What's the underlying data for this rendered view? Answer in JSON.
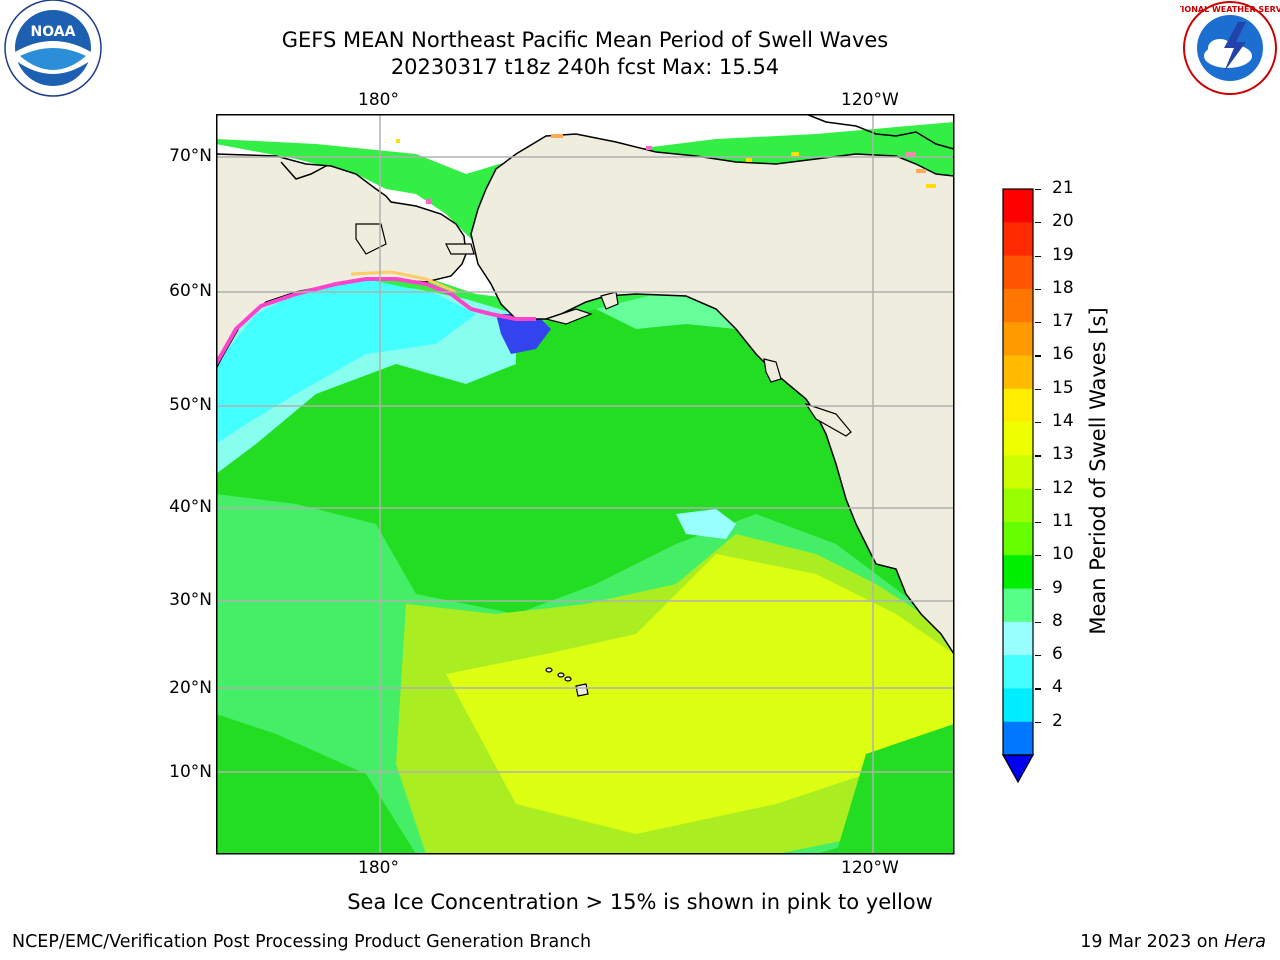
{
  "title_line1": "GEFS MEAN Northeast Pacific Mean Period of Swell Waves",
  "title_line2": "20230317 t18z 240h fcst   Max: 15.54",
  "top_lon_labels": [
    "180°",
    "120°W"
  ],
  "bottom_lon_labels": [
    "180°",
    "120°W"
  ],
  "lat_labels": [
    "70°N",
    "60°N",
    "50°N",
    "40°N",
    "30°N",
    "20°N",
    "10°N"
  ],
  "colorbar": {
    "label": "Mean Period of Swell Waves [s]",
    "ticks": [
      "21",
      "20",
      "19",
      "18",
      "17",
      "16",
      "15",
      "14",
      "13",
      "12",
      "11",
      "10",
      "9",
      "8",
      "6",
      "4",
      "2"
    ],
    "colors": [
      "#ff0000",
      "#ff2a00",
      "#ff5500",
      "#ff7700",
      "#ff9900",
      "#ffbb00",
      "#ffee00",
      "#eeff00",
      "#ccff00",
      "#99ff00",
      "#66ff00",
      "#00ee00",
      "#55ff88",
      "#99ffff",
      "#44ffff",
      "#00eeff",
      "#0077ff"
    ],
    "under_color": "#0000ee"
  },
  "note": "Sea Ice Concentration > 15% is shown in pink to yellow",
  "footer_left": "NCEP/EMC/Verification Post Processing Product Generation Branch",
  "footer_right_prefix": "19 Mar 2023 on ",
  "footer_right_host": "Hera",
  "logos": {
    "noaa_icon": "noaa-logo",
    "nws_icon": "nws-logo",
    "noaa_text": "NOAA",
    "nws_ring_text": "NATIONAL WEATHER SERVICE"
  }
}
